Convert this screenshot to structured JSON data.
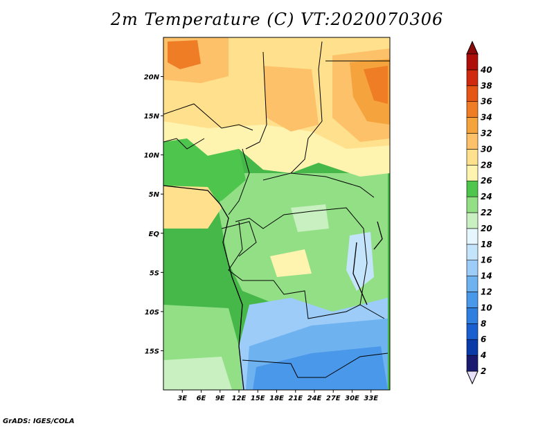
{
  "title": "2m Temperature (C) VT:2020070306",
  "credit": "GrADS: IGES/COLA",
  "map": {
    "region": "Central Africa",
    "lon_range": [
      0,
      36
    ],
    "lat_range": [
      -20,
      25
    ],
    "lat_ticks": [
      "20N",
      "15N",
      "10N",
      "5N",
      "EQ",
      "5S",
      "10S",
      "15S"
    ],
    "lat_tick_values": [
      20,
      15,
      10,
      5,
      0,
      -5,
      -10,
      -15
    ],
    "lon_ticks": [
      "3E",
      "6E",
      "9E",
      "12E",
      "15E",
      "18E",
      "21E",
      "24E",
      "27E",
      "30E",
      "33E"
    ],
    "lon_tick_values": [
      3,
      6,
      9,
      12,
      15,
      18,
      21,
      24,
      27,
      30,
      33
    ]
  },
  "colorbar": {
    "labels": [
      "2",
      "4",
      "6",
      "8",
      "10",
      "12",
      "14",
      "16",
      "18",
      "20",
      "22",
      "24",
      "26",
      "28",
      "30",
      "32",
      "34",
      "36",
      "38",
      "40"
    ],
    "colors": [
      "#191970",
      "#0a3aa8",
      "#1a5fd0",
      "#2f7fe0",
      "#4a98ea",
      "#6fb2f0",
      "#9cccf7",
      "#c4e4fb",
      "#e6f6ff",
      "#c8f0c0",
      "#93df86",
      "#4ec64e",
      "#fff3b0",
      "#ffe08c",
      "#fdc16a",
      "#f5a33c",
      "#ef7d25",
      "#e45516",
      "#cf2a0e",
      "#ae0f0a"
    ],
    "under_color": "#e8e0f8",
    "over_color": "#8c0a0a"
  },
  "colors": {
    "ocean": "#46b84a",
    "border": "#000000"
  }
}
